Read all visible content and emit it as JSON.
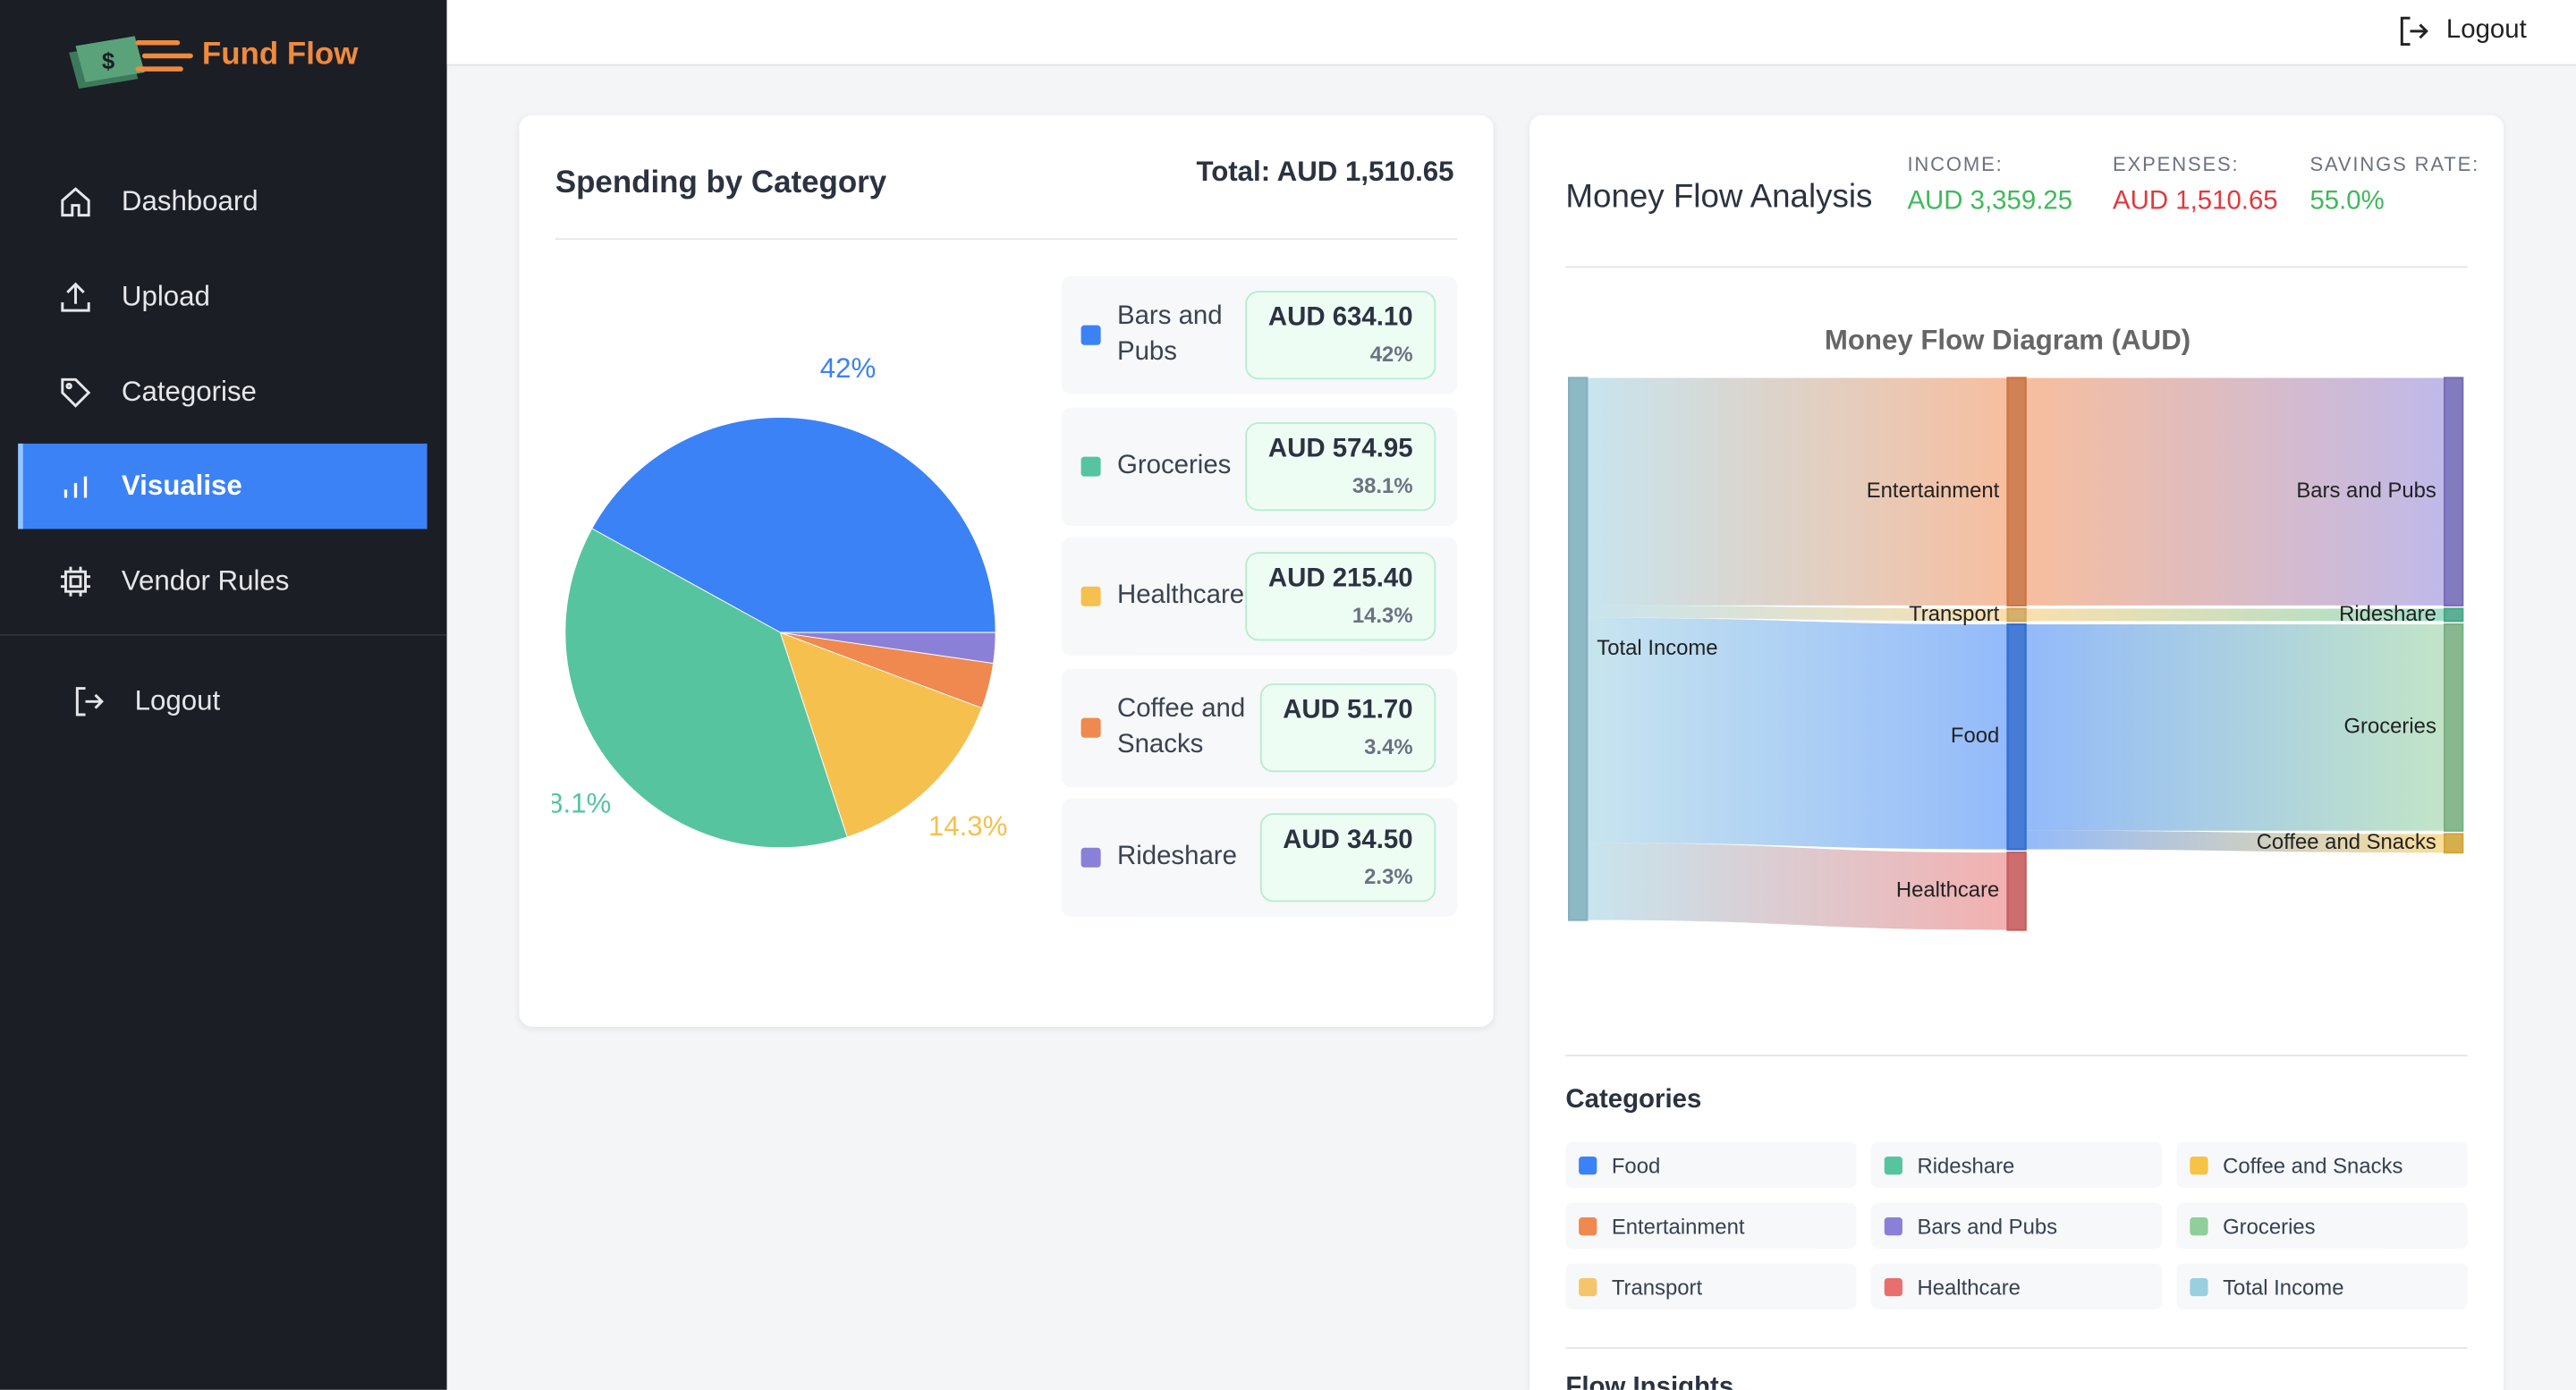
{
  "sidebar": {
    "brand": "Fund Flow",
    "nav": [
      "Dashboard",
      "Upload",
      "Categorise",
      "Visualise",
      "Vendor Rules"
    ],
    "logout": "Logout"
  },
  "topbar": {
    "logout": "Logout"
  },
  "spending_card": {
    "title": "Spending by Category",
    "total": "Total: AUD 1,510.65"
  },
  "flow_card": {
    "title": "Money Flow Analysis",
    "stats": [
      {
        "label": "INCOME:",
        "value": "AUD 3,359.25",
        "color": "#3fb95a"
      },
      {
        "label": "EXPENSES:",
        "value": "AUD 1,510.65",
        "color": "#e0393e"
      },
      {
        "label": "SAVINGS RATE:",
        "value": "55.0%",
        "color": "#3fb95a"
      }
    ],
    "categories_title": "Categories",
    "categories": [
      {
        "name": "Food",
        "color": "#3b82f6"
      },
      {
        "name": "Rideshare",
        "color": "#57c4a0"
      },
      {
        "name": "Coffee and Snacks",
        "color": "#f6c344"
      },
      {
        "name": "Entertainment",
        "color": "#f0894f"
      },
      {
        "name": "Bars and Pubs",
        "color": "#8b80d8"
      },
      {
        "name": "Groceries",
        "color": "#8fcf9a"
      },
      {
        "name": "Transport",
        "color": "#f5c56b"
      },
      {
        "name": "Healthcare",
        "color": "#e96f6f"
      },
      {
        "name": "Total Income",
        "color": "#9acfe0"
      }
    ],
    "insights_title": "Flow Insights"
  },
  "chart_data": [
    {
      "type": "pie",
      "categories": [
        "Bars and Pubs",
        "Groceries",
        "Healthcare",
        "Coffee and Snacks",
        "Rideshare"
      ],
      "values": [
        634.1,
        574.95,
        215.4,
        51.7,
        34.5
      ],
      "value_labels": [
        "AUD 634.10",
        "AUD 574.95",
        "AUD 215.40",
        "AUD 51.70",
        "AUD 34.50"
      ],
      "percents": [
        42,
        38.1,
        14.3,
        3.4,
        2.3
      ],
      "percent_labels": [
        "42%",
        "38.1%",
        "14.3%",
        "3.4%",
        "2.3%"
      ],
      "colors": [
        "#3b82f6",
        "#57c4a0",
        "#f6c04f",
        "#f0894f",
        "#8b80d8"
      ]
    },
    {
      "type": "sankey",
      "title": "Money Flow Diagram (AUD)",
      "nodes": [
        {
          "name": "Total Income",
          "color": "#9acfe0"
        },
        {
          "name": "Entertainment",
          "color": "#f0894f"
        },
        {
          "name": "Transport",
          "color": "#f5c56b"
        },
        {
          "name": "Food",
          "color": "#3b82f6"
        },
        {
          "name": "Healthcare",
          "color": "#e96f6f"
        },
        {
          "name": "Bars and Pubs",
          "color": "#8b80d8"
        },
        {
          "name": "Rideshare",
          "color": "#57c4a0"
        },
        {
          "name": "Groceries",
          "color": "#8fcf9a"
        },
        {
          "name": "Coffee and Snacks",
          "color": "#f6c344"
        }
      ],
      "links": [
        {
          "source": 0,
          "target": 1,
          "value": 634.1
        },
        {
          "source": 0,
          "target": 2,
          "value": 34.5
        },
        {
          "source": 0,
          "target": 3,
          "value": 626.65
        },
        {
          "source": 0,
          "target": 4,
          "value": 215.4
        },
        {
          "source": 1,
          "target": 5,
          "value": 634.1
        },
        {
          "source": 2,
          "target": 6,
          "value": 34.5
        },
        {
          "source": 3,
          "target": 7,
          "value": 574.95
        },
        {
          "source": 3,
          "target": 8,
          "value": 51.7
        }
      ]
    }
  ]
}
